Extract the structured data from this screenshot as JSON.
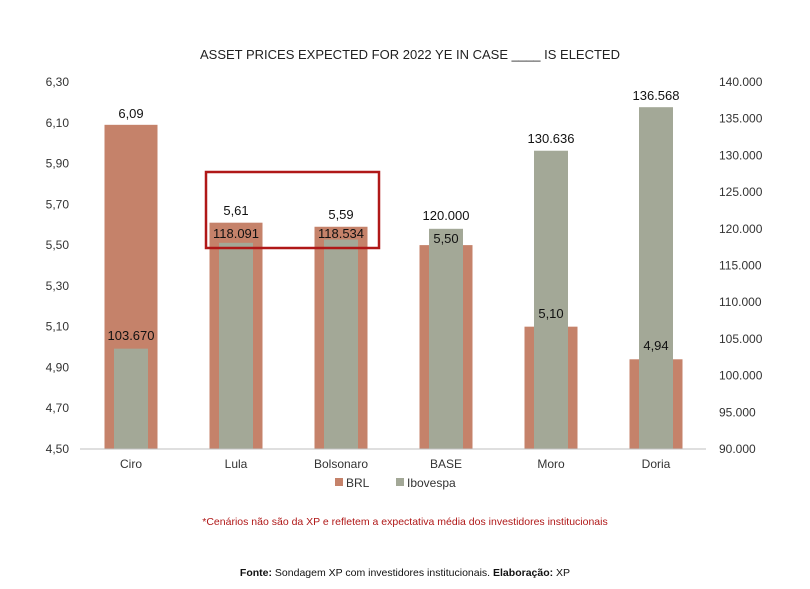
{
  "colors": {
    "brl": "#c5826a",
    "ibovespa": "#a3a897",
    "highlight": "#b01818",
    "note": "#b01818"
  },
  "chart_data": {
    "type": "bar",
    "title": "ASSET PRICES  EXPECTED FOR 2022 YE IN CASE ____ IS ELECTED",
    "categories": [
      "Ciro",
      "Lula",
      "Bolsonaro",
      "BASE",
      "Moro",
      "Doria"
    ],
    "series": [
      {
        "name": "BRL",
        "axis": "left",
        "color": "#c5826a",
        "values": [
          6.09,
          5.61,
          5.59,
          5.5,
          5.1,
          4.94
        ],
        "labels": [
          "6,09",
          "5,61",
          "5,59",
          "5,50",
          "5,10",
          "4,94"
        ]
      },
      {
        "name": "Ibovespa",
        "axis": "right",
        "color": "#a3a897",
        "values": [
          103670,
          118091,
          118534,
          120000,
          130636,
          136568
        ],
        "labels": [
          "103.670",
          "118.091",
          "118.534",
          "120.000",
          "130.636",
          "136.568"
        ]
      }
    ],
    "y_left": {
      "min": 4.5,
      "max": 6.3,
      "ticks": [
        "4,50",
        "4,70",
        "4,90",
        "5,10",
        "5,30",
        "5,50",
        "5,70",
        "5,90",
        "6,10",
        "6,30"
      ]
    },
    "y_right": {
      "min": 90000,
      "max": 140000,
      "ticks": [
        "90.000",
        "95.000",
        "100.000",
        "105.000",
        "110.000",
        "115.000",
        "120.000",
        "125.000",
        "130.000",
        "135.000",
        "140.000"
      ]
    },
    "highlight": {
      "categories": [
        "Lula",
        "Bolsonaro"
      ]
    },
    "legend": {
      "position": "bottom",
      "entries": [
        "BRL",
        "Ibovespa"
      ]
    },
    "grid": false
  },
  "footnote": "*Cenários não são da XP e refletem a expectativa média dos investidores institucionais",
  "source": {
    "label": "Fonte:",
    "text": "Sondagem XP com investidores institucionais.",
    "label2": "Elaboração:",
    "text2": "XP"
  }
}
